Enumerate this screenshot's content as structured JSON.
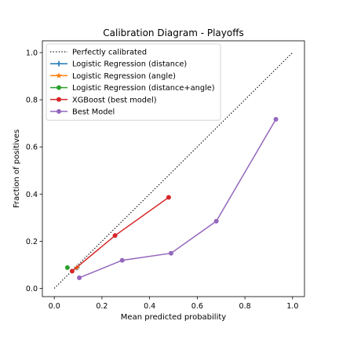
{
  "chart_data": {
    "type": "line",
    "title": "Calibration Diagram - Playoffs",
    "xlabel": "Mean predicted probability",
    "ylabel": "Fraction of positives",
    "xlim": [
      -0.05,
      1.05
    ],
    "ylim": [
      -0.035,
      1.05
    ],
    "xticks": [
      "0.0",
      "0.2",
      "0.4",
      "0.6",
      "0.8",
      "1.0"
    ],
    "yticks": [
      "0.0",
      "0.2",
      "0.4",
      "0.6",
      "0.8",
      "1.0"
    ],
    "grid": false,
    "legend_position": "top-left",
    "reference": {
      "name": "Perfectly calibrated",
      "x": [
        0,
        1
      ],
      "y": [
        0,
        1
      ],
      "color": "#000000",
      "style": "dotted"
    },
    "series": [
      {
        "name": "Logistic Regression (distance)",
        "color": "#1f77b4",
        "marker": "plus",
        "x": [
          0.095
        ],
        "y": [
          0.088
        ]
      },
      {
        "name": "Logistic Regression (angle)",
        "color": "#ff7f0e",
        "marker": "star",
        "x": [
          0.095
        ],
        "y": [
          0.088
        ]
      },
      {
        "name": "Logistic Regression (distance+angle)",
        "color": "#2ca02c",
        "marker": "circle",
        "x": [
          0.055
        ],
        "y": [
          0.088
        ]
      },
      {
        "name": "XGBoost (best model)",
        "color": "#d62728",
        "marker": "circle",
        "x": [
          0.075,
          0.255,
          0.48
        ],
        "y": [
          0.073,
          0.224,
          0.386
        ]
      },
      {
        "name": "Best Model",
        "color": "#9467bd",
        "marker": "circle",
        "x": [
          0.105,
          0.285,
          0.49,
          0.68,
          0.93
        ],
        "y": [
          0.045,
          0.119,
          0.149,
          0.285,
          0.717
        ]
      }
    ]
  }
}
